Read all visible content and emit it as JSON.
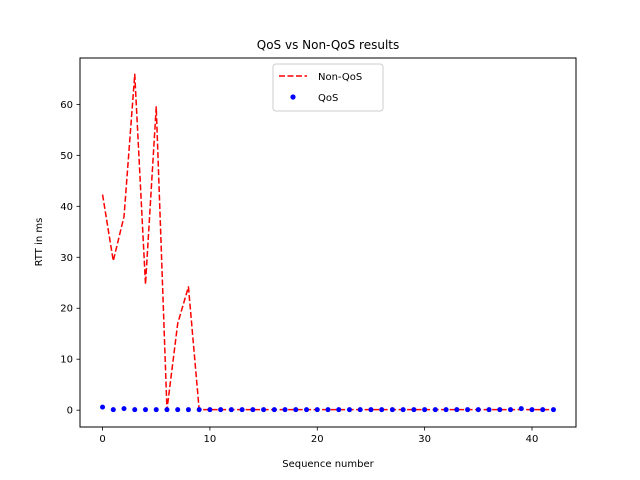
{
  "chart_data": {
    "type": "line",
    "title": "QoS vs Non-QoS results",
    "xlabel": "Sequence number",
    "ylabel": "RTT in ms",
    "xlim": [
      -2.1,
      44.1
    ],
    "ylim": [
      -3.3,
      69.1
    ],
    "xticks": [
      0,
      10,
      20,
      30,
      40
    ],
    "yticks": [
      0,
      10,
      20,
      30,
      40,
      50,
      60
    ],
    "grid": false,
    "legend_position": "upper center",
    "series": [
      {
        "name": "Non-QoS",
        "style": "dashed line",
        "color": "#ff0000",
        "x": [
          0,
          1,
          2,
          3,
          4,
          5,
          6,
          7,
          8,
          9,
          10,
          11,
          12,
          13,
          14,
          15,
          16,
          17,
          18,
          19,
          20,
          21,
          22,
          23,
          24,
          25,
          26,
          27,
          28,
          29,
          30,
          31,
          32,
          33,
          34,
          35,
          36,
          37,
          38,
          39,
          40,
          41,
          42
        ],
        "y": [
          42.3,
          29.3,
          38.0,
          65.9,
          24.7,
          59.5,
          0.1,
          17.0,
          24.2,
          0.1,
          0.1,
          0.1,
          0.1,
          0.1,
          0.1,
          0.1,
          0.1,
          0.1,
          0.1,
          0.1,
          0.1,
          0.1,
          0.1,
          0.1,
          0.1,
          0.1,
          0.1,
          0.1,
          0.1,
          0.1,
          0.1,
          0.1,
          0.1,
          0.1,
          0.1,
          0.1,
          0.1,
          0.1,
          0.1,
          0.1,
          0.1,
          0.1,
          0.1
        ]
      },
      {
        "name": "QoS",
        "style": "dot markers",
        "color": "#0000ff",
        "x": [
          0,
          1,
          2,
          3,
          4,
          5,
          6,
          7,
          8,
          9,
          10,
          11,
          12,
          13,
          14,
          15,
          16,
          17,
          18,
          19,
          20,
          21,
          22,
          23,
          24,
          25,
          26,
          27,
          28,
          29,
          30,
          31,
          32,
          33,
          34,
          35,
          36,
          37,
          38,
          39,
          40,
          41,
          42
        ],
        "y": [
          0.6,
          0.1,
          0.3,
          0.1,
          0.1,
          0.1,
          0.1,
          0.1,
          0.1,
          0.1,
          0.1,
          0.1,
          0.1,
          0.1,
          0.1,
          0.1,
          0.1,
          0.1,
          0.1,
          0.1,
          0.1,
          0.1,
          0.1,
          0.1,
          0.1,
          0.1,
          0.1,
          0.1,
          0.1,
          0.1,
          0.1,
          0.1,
          0.1,
          0.1,
          0.1,
          0.1,
          0.1,
          0.1,
          0.1,
          0.3,
          0.1,
          0.1,
          0.1
        ]
      }
    ]
  }
}
